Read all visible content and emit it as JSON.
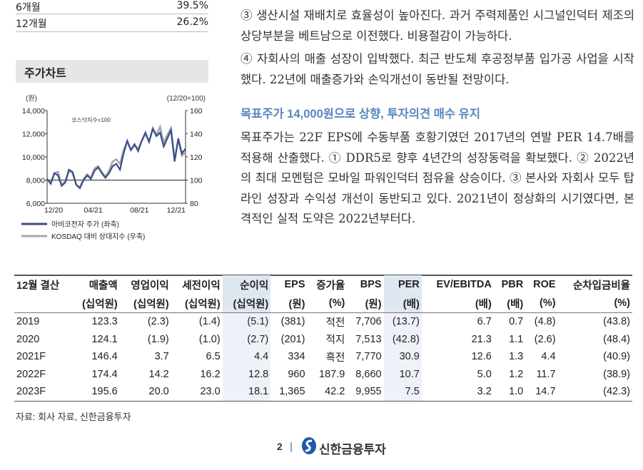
{
  "returns": [
    {
      "label": "6개월",
      "value": "39.5%"
    },
    {
      "label": "12개월",
      "value": "26.2%"
    }
  ],
  "chart_section": {
    "title": "주가차트"
  },
  "chart_data": {
    "type": "line",
    "unit_label": "(원)",
    "base_label": "(12/20=100)",
    "inner_label": "코스닥지수=100",
    "x_tick_labels": [
      "12/20",
      "04/21",
      "08/21",
      "12/21"
    ],
    "y_left_ticks": [
      "14,000",
      "12,000",
      "10,000",
      "8,000",
      "6,000"
    ],
    "y_right_ticks": [
      "160",
      "140",
      "120",
      "100",
      "80"
    ],
    "ylim_left": [
      6000,
      14000
    ],
    "ylim_right": [
      80,
      160
    ],
    "legend_position": "bottom",
    "series": [
      {
        "name": "아비코전자 주가 (좌축)",
        "color": "#3a4e8c",
        "axis": "left",
        "values": [
          8100,
          7700,
          8600,
          8400,
          7500,
          7800,
          8900,
          8700,
          7600,
          7300,
          8000,
          8400,
          8100,
          8800,
          9100,
          8600,
          8200,
          8600,
          9200,
          9400,
          8900,
          10300,
          11400,
          10600,
          11100,
          10500,
          11400,
          12100,
          11300,
          12400,
          11800,
          12100,
          10900,
          11600,
          12300,
          9600,
          11600,
          10300,
          10700
        ]
      },
      {
        "name": "KOSDAQ 대비 상대지수 (우축)",
        "color": "#a8a8a8",
        "axis": "right",
        "values": [
          101,
          97,
          106,
          107,
          96,
          99,
          108,
          106,
          96,
          94,
          101,
          105,
          102,
          110,
          112,
          107,
          103,
          108,
          116,
          118,
          114,
          126,
          133,
          126,
          130,
          127,
          134,
          140,
          133,
          145,
          139,
          146,
          132,
          139,
          145,
          118,
          135,
          121,
          124
        ]
      }
    ]
  },
  "paragraphs": {
    "p3_top": "③ 생산시설 재배치로 효율성이 높아진다. 과거 주력제품인 시그널인덕터 제조의 상당부분을 베트남으로 이전했다. 비용절감이 가능하다.",
    "p4_top": "④ 자회사의 매출 성장이 입박했다. 최근 반도체 후공정부품 입가공 사업을 시작했다. 22년에 매출증가와 손익개선이 동반될 전망이다.",
    "heading": "목표주가 14,000원으로 상향, 투자의견 매수 유지",
    "body": "목표주가는 22F EPS에 수동부품 호황기였던 2017년의 연발 PER 14.7배를 적용해 산출했다. ① DDR5로 향후 4년간의 성장동력을 확보했다. ② 2022년의 최대 모멘텀은 모바일 파워인덕터 점유율 상승이다. ③ 본사와 자회사 모두 탑라인 성장과 수익성 개선이 동반되고 있다. 2021년이 정상화의 시기였다면, 본격적인 실적 도약은 2022년부터다."
  },
  "table": {
    "header1": [
      "12월 결산",
      "매출액",
      "영업이익",
      "세전이익",
      "순이익",
      "EPS",
      "증가율",
      "BPS",
      "PER",
      "EV/EBITDA",
      "PBR",
      "ROE",
      "순차입금비율"
    ],
    "header2": [
      "",
      "(십억원)",
      "(십억원)",
      "(십억원)",
      "(십억원)",
      "(원)",
      "(%)",
      "(원)",
      "(배)",
      "(배)",
      "(배)",
      "(%)",
      "(%)"
    ],
    "rows": [
      [
        "2019",
        "123.3",
        "(2.3)",
        "(1.4)",
        "(5.1)",
        "(381)",
        "적전",
        "7,706",
        "(13.7)",
        "6.7",
        "0.7",
        "(4.8)",
        "(43.8)"
      ],
      [
        "2020",
        "124.1",
        "(1.9)",
        "(1.0)",
        "(2.7)",
        "(201)",
        "적지",
        "7,513",
        "(42.8)",
        "21.3",
        "1.1",
        "(2.6)",
        "(48.4)"
      ],
      [
        "2021F",
        "146.4",
        "3.7",
        "6.5",
        "4.4",
        "334",
        "흑전",
        "7,770",
        "30.9",
        "12.6",
        "1.3",
        "4.4",
        "(40.9)"
      ],
      [
        "2022F",
        "174.4",
        "14.2",
        "16.2",
        "12.8",
        "960",
        "187.9",
        "8,660",
        "10.7",
        "5.0",
        "1.2",
        "11.7",
        "(38.9)"
      ],
      [
        "2023F",
        "195.6",
        "20.0",
        "23.0",
        "18.1",
        "1,365",
        "42.2",
        "9,955",
        "7.5",
        "3.2",
        "1.0",
        "14.7",
        "(42.3)"
      ]
    ]
  },
  "source": "자료: 회사 자료, 신한금융투자",
  "footer": {
    "page": "2",
    "brand": "신한금융투자"
  }
}
